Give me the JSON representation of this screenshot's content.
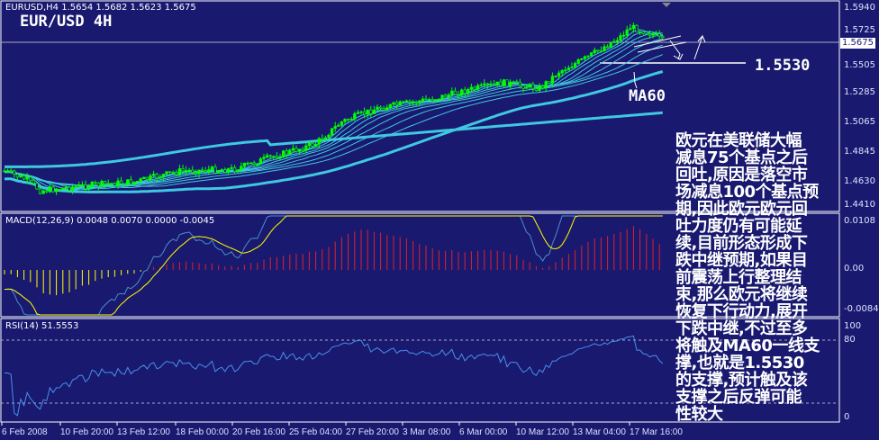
{
  "header": {
    "symbol_info": "EURUSD,H4  1.5654 1.5682 1.5623 1.5675",
    "title": "EUR/USD 4H"
  },
  "annotations": {
    "support_level": "1.5530",
    "ma_label": "MA60"
  },
  "price_axis": [
    "1.5940",
    "1.5725",
    "1.5505",
    "1.5285",
    "1.5065",
    "1.4845",
    "1.4630",
    "1.4410"
  ],
  "current_price": "1.5675",
  "macd": {
    "label": "MACD(12,26,9) 0.0048 0.0070 0.0000 -0.0045",
    "axis": [
      "0.0108",
      "0.00",
      "-0.0084"
    ]
  },
  "rsi": {
    "label": "RSI(14) 51.5553",
    "axis": [
      "100",
      "80",
      "0"
    ]
  },
  "time_axis": [
    "6 Feb 2008",
    "10 Feb 20:00",
    "13 Feb 12:00",
    "18 Feb 00:00",
    "20 Feb 16:00",
    "25 Feb 04:00",
    "27 Feb 20:00",
    "3 Mar 08:00",
    "6 Mar 00:00",
    "10 Mar 12:00",
    "13 Mar 04:00",
    "17 Mar 16:00"
  ],
  "commentary": [
    "欧元在美联储大幅",
    "减息75个基点之后",
    "回吐,原因是落空市",
    "场减息100个基点预",
    "期,因此欧元欧元回",
    "吐力度仍有可能延",
    "续,目前形态形成下",
    "跌中继预期,如果目",
    "前震荡上行整理结",
    "束,那么欧元将继续",
    "恢复下行动力,展开",
    "下跌中继,不过至多",
    "将触及MA60一线支",
    "撑,也就是1.5530",
    "的支撑,预计触及该",
    "支撑之后反弹可能",
    "性较大"
  ],
  "colors": {
    "background": "#191970",
    "bull_candle": "#00ff00",
    "ma": "#40c8e0",
    "macd_signal": "#ffff00",
    "histogram_pos": "#e0202a",
    "histogram_neg": "#ffff00"
  }
}
